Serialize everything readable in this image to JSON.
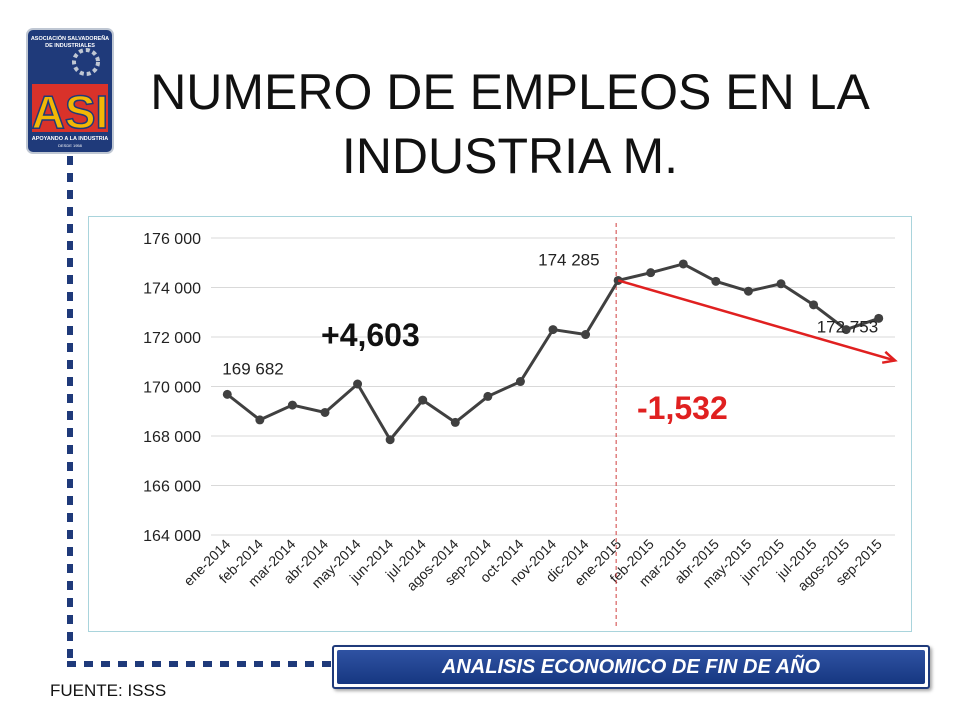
{
  "title_line1": "NUMERO DE EMPLEOS EN LA",
  "title_line2": "INDUSTRIA M.",
  "logo": {
    "top_text": "ASOCIACIÓN SALVADOREÑA DE INDUSTRIALES",
    "letters": "ASI",
    "bottom_text": "APOYANDO A LA INDUSTRIA",
    "since_text": "DESDE 1958",
    "colors": {
      "navy": "#1f3a7a",
      "gold": "#f2b705",
      "red": "#d9322a",
      "grey": "#bfc7d3"
    }
  },
  "banner_label": "ANALISIS ECONOMICO DE FIN DE AÑO",
  "source_label": "FUENTE: ISSS",
  "chart_data": {
    "type": "line",
    "categories": [
      "ene-2014",
      "feb-2014",
      "mar-2014",
      "abr-2014",
      "may-2014",
      "jun-2014",
      "jul-2014",
      "agos-2014",
      "sep-2014",
      "oct-2014",
      "nov-2014",
      "dic-2014",
      "ene-2015",
      "feb-2015",
      "mar-2015",
      "abr-2015",
      "may-2015",
      "jun-2015",
      "jul-2015",
      "agos-2015",
      "sep-2015"
    ],
    "series": [
      {
        "values": [
          169682,
          168650,
          169250,
          168950,
          170100,
          167850,
          169450,
          168550,
          169600,
          170200,
          172300,
          172100,
          174285,
          174600,
          174950,
          174250,
          173850,
          174150,
          173300,
          172300,
          172753
        ]
      }
    ],
    "ylim": [
      164000,
      176000
    ],
    "yticks": [
      164000,
      166000,
      168000,
      170000,
      172000,
      174000,
      176000
    ],
    "ytick_labels": [
      "164 000",
      "166 000",
      "168 000",
      "170 000",
      "172 000",
      "174 000",
      "176 000"
    ],
    "grid": "horizontal",
    "line_color": "#404040",
    "point_labels": [
      {
        "index": 0,
        "text": "169 682"
      },
      {
        "index": 12,
        "text": "174 285"
      },
      {
        "index": 20,
        "text": "172 753"
      }
    ],
    "annotations": [
      {
        "text": "+4,603",
        "color": "#111111"
      },
      {
        "text": "-1,532",
        "color": "#e02020"
      }
    ],
    "divider_index": 12,
    "divider_color": "#d04040",
    "trend_arrow": {
      "from_index": 12,
      "from_value": 174285,
      "to_index": 20.5,
      "to_value": 171050,
      "color": "#e02020"
    }
  }
}
